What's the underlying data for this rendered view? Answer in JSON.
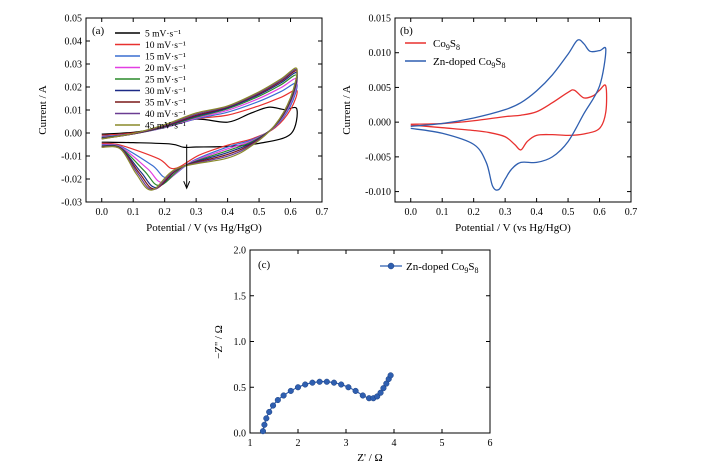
{
  "chart_data": [
    {
      "panel": "(a)",
      "type": "line",
      "xlabel": "Potential / V (vs Hg/HgO)",
      "ylabel": "Current / A",
      "xlim": [
        -0.05,
        0.7
      ],
      "ylim": [
        -0.03,
        0.05
      ],
      "xticks": [
        "0.0",
        "0.1",
        "0.2",
        "0.3",
        "0.4",
        "0.5",
        "0.6",
        "0.7"
      ],
      "yticks": [
        "-0.03",
        "-0.02",
        "-0.01",
        "0.00",
        "0.01",
        "0.02",
        "0.03",
        "0.04",
        "0.05"
      ],
      "legend_position": "top-left",
      "arrow": {
        "x": 0.27,
        "y_from": -0.005,
        "y_to": -0.024
      },
      "series": [
        {
          "name": "5 mV·s⁻¹",
          "color": "#000000",
          "peak_up": 0.0112,
          "peak_up_x": 0.53,
          "end_up": 0.0104,
          "cath_min": -0.0062,
          "cath_x": 0.26,
          "start_low": -0.004,
          "start_high": -0.0005
        },
        {
          "name": "10 mV·s⁻¹",
          "color": "#e8312f",
          "peak_up": 0.0185,
          "peak_up_x": 0.6,
          "end_up": 0.0185,
          "cath_min": -0.0155,
          "cath_x": 0.23,
          "start_low": -0.0045,
          "start_high": -0.001
        },
        {
          "name": "15 mV·s⁻¹",
          "color": "#3a6ed1",
          "peak_up": 0.0215,
          "peak_up_x": 0.61,
          "end_up": 0.0215,
          "cath_min": -0.0195,
          "cath_x": 0.21,
          "start_low": -0.005,
          "start_high": -0.0015
        },
        {
          "name": "20 mV·s⁻¹",
          "color": "#e23ee2",
          "peak_up": 0.0235,
          "peak_up_x": 0.615,
          "end_up": 0.0235,
          "cath_min": -0.0215,
          "cath_x": 0.195,
          "start_low": -0.0053,
          "start_high": -0.0018
        },
        {
          "name": "25 mV·s⁻¹",
          "color": "#2a8a2a",
          "peak_up": 0.025,
          "peak_up_x": 0.618,
          "end_up": 0.025,
          "cath_min": -0.0228,
          "cath_x": 0.185,
          "start_low": -0.0056,
          "start_high": -0.002
        },
        {
          "name": "30 mV·s⁻¹",
          "color": "#1c2a86",
          "peak_up": 0.026,
          "peak_up_x": 0.62,
          "end_up": 0.026,
          "cath_min": -0.0237,
          "cath_x": 0.175,
          "start_low": -0.0058,
          "start_high": -0.0022
        },
        {
          "name": "35 mV·s⁻¹",
          "color": "#7a1818",
          "peak_up": 0.0268,
          "peak_up_x": 0.62,
          "end_up": 0.0268,
          "cath_min": -0.0243,
          "cath_x": 0.17,
          "start_low": -0.006,
          "start_high": -0.0024
        },
        {
          "name": "40 mV·s⁻¹",
          "color": "#6a3c92",
          "peak_up": 0.0274,
          "peak_up_x": 0.62,
          "end_up": 0.0274,
          "cath_min": -0.0246,
          "cath_x": 0.165,
          "start_low": -0.0061,
          "start_high": -0.0025
        },
        {
          "name": "45 mV·s⁻¹",
          "color": "#8a8a2a",
          "peak_up": 0.028,
          "peak_up_x": 0.62,
          "end_up": 0.028,
          "cath_min": -0.0248,
          "cath_x": 0.16,
          "start_low": -0.0062,
          "start_high": -0.0026
        }
      ]
    },
    {
      "panel": "(b)",
      "type": "line",
      "xlabel": "Potential / V (vs Hg/HgO)",
      "ylabel": "Current / A",
      "xlim": [
        -0.05,
        0.7
      ],
      "ylim": [
        -0.0115,
        0.015
      ],
      "xticks": [
        "0.0",
        "0.1",
        "0.2",
        "0.3",
        "0.4",
        "0.5",
        "0.6",
        "0.7"
      ],
      "yticks": [
        "-0.010",
        "-0.005",
        "0.000",
        "0.005",
        "0.010",
        "0.015"
      ],
      "legend_position": "top-left",
      "series": [
        {
          "name_base": "Co",
          "name_sub1": "9",
          "name_mid": "S",
          "name_sub2": "8",
          "color": "#e8312f",
          "anodic": [
            [
              0.0,
              -0.0003
            ],
            [
              0.1,
              -0.0002
            ],
            [
              0.2,
              0.0002
            ],
            [
              0.3,
              0.0008
            ],
            [
              0.35,
              0.001
            ],
            [
              0.4,
              0.0015
            ],
            [
              0.45,
              0.0028
            ],
            [
              0.5,
              0.0043
            ],
            [
              0.52,
              0.0046
            ],
            [
              0.55,
              0.0035
            ],
            [
              0.58,
              0.0038
            ],
            [
              0.6,
              0.0046
            ],
            [
              0.62,
              0.0052
            ]
          ],
          "cathodic": [
            [
              0.62,
              0.0052
            ],
            [
              0.62,
              0.0015
            ],
            [
              0.6,
              -0.0009
            ],
            [
              0.55,
              -0.0017
            ],
            [
              0.5,
              -0.0019
            ],
            [
              0.45,
              -0.0018
            ],
            [
              0.4,
              -0.0019
            ],
            [
              0.37,
              -0.0028
            ],
            [
              0.35,
              -0.004
            ],
            [
              0.33,
              -0.0032
            ],
            [
              0.3,
              -0.0021
            ],
            [
              0.25,
              -0.0015
            ],
            [
              0.2,
              -0.0012
            ],
            [
              0.1,
              -0.0008
            ],
            [
              0.0,
              -0.0004
            ]
          ]
        },
        {
          "name_base": "Zn-doped Co",
          "name_sub1": "9",
          "name_mid": "S",
          "name_sub2": "8",
          "color": "#2f5fb0",
          "anodic": [
            [
              0.0,
              -0.0006
            ],
            [
              0.1,
              -0.0002
            ],
            [
              0.2,
              0.0006
            ],
            [
              0.3,
              0.0018
            ],
            [
              0.35,
              0.0028
            ],
            [
              0.4,
              0.0045
            ],
            [
              0.45,
              0.0068
            ],
            [
              0.5,
              0.0098
            ],
            [
              0.53,
              0.0118
            ],
            [
              0.55,
              0.0113
            ],
            [
              0.57,
              0.0102
            ],
            [
              0.6,
              0.0103
            ],
            [
              0.62,
              0.0104
            ]
          ],
          "cathodic": [
            [
              0.62,
              0.0104
            ],
            [
              0.6,
              0.0052
            ],
            [
              0.55,
              0.0012
            ],
            [
              0.5,
              -0.0028
            ],
            [
              0.45,
              -0.005
            ],
            [
              0.4,
              -0.0058
            ],
            [
              0.35,
              -0.0058
            ],
            [
              0.32,
              -0.0068
            ],
            [
              0.3,
              -0.0082
            ],
            [
              0.28,
              -0.0097
            ],
            [
              0.26,
              -0.0092
            ],
            [
              0.24,
              -0.0058
            ],
            [
              0.2,
              -0.0032
            ],
            [
              0.1,
              -0.0016
            ],
            [
              0.0,
              -0.0009
            ]
          ]
        }
      ]
    },
    {
      "panel": "(c)",
      "type": "scatter",
      "xlabel": "Z' / Ω",
      "ylabel": "−Z'' / Ω",
      "xlim": [
        1,
        6
      ],
      "ylim": [
        0,
        2.0
      ],
      "xticks": [
        "1",
        "2",
        "3",
        "4",
        "5",
        "6"
      ],
      "yticks": [
        "0.0",
        "0.5",
        "1.0",
        "1.5",
        "2.0"
      ],
      "legend_position": "top-right",
      "series": [
        {
          "name_base": "Zn-doped Co",
          "name_sub1": "9",
          "name_mid": "S",
          "name_sub2": "8",
          "color": "#2f5fb0",
          "x": [
            1.27,
            1.3,
            1.34,
            1.4,
            1.48,
            1.58,
            1.7,
            1.85,
            2.0,
            2.15,
            2.3,
            2.45,
            2.6,
            2.75,
            2.9,
            3.05,
            3.2,
            3.35,
            3.48,
            3.57,
            3.65,
            3.72,
            3.78,
            3.84,
            3.89,
            3.93
          ],
          "y": [
            0.02,
            0.09,
            0.16,
            0.23,
            0.3,
            0.36,
            0.41,
            0.46,
            0.5,
            0.53,
            0.55,
            0.56,
            0.56,
            0.55,
            0.53,
            0.5,
            0.46,
            0.41,
            0.38,
            0.38,
            0.4,
            0.44,
            0.49,
            0.54,
            0.59,
            0.63
          ]
        }
      ]
    }
  ]
}
